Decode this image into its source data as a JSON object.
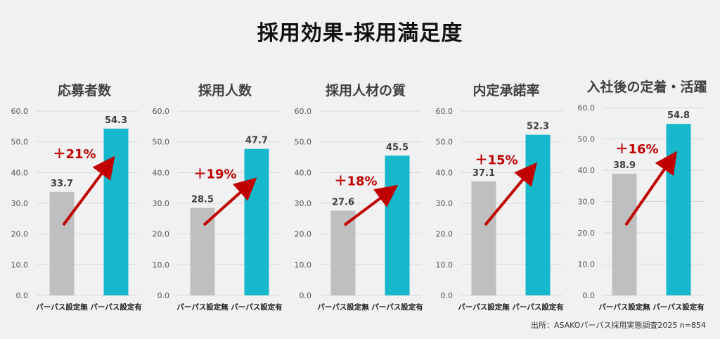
{
  "title": "採用効果-採用満足度",
  "source": "出所：ASAKOパーパス採用実態調査2025 n=854",
  "colors": {
    "without": "#bfbfbf",
    "with": "#17b8cc",
    "arrow": "#c00000",
    "grid": "#d9d9d9"
  },
  "chart_data": [
    {
      "type": "bar",
      "title": "応募者数",
      "categories": [
        "パーパス設定無",
        "パーパス設定有"
      ],
      "values": [
        33.7,
        54.3
      ],
      "increase": "+21%",
      "ylim": [
        0,
        60
      ],
      "yticks": [
        "0.0",
        "10.0",
        "20.0",
        "30.0",
        "40.0",
        "50.0",
        "60.0"
      ]
    },
    {
      "type": "bar",
      "title": "採用人数",
      "categories": [
        "パーパス設定無",
        "パーパス設定有"
      ],
      "values": [
        28.5,
        47.7
      ],
      "increase": "+19%",
      "ylim": [
        0,
        60
      ],
      "yticks": [
        "0.0",
        "10.0",
        "20.0",
        "30.0",
        "40.0",
        "50.0",
        "60.0"
      ]
    },
    {
      "type": "bar",
      "title": "採用人材の質",
      "categories": [
        "パーパス設定無",
        "パーパス設定有"
      ],
      "values": [
        27.6,
        45.5
      ],
      "increase": "+18%",
      "ylim": [
        0,
        60
      ],
      "yticks": [
        "0.0",
        "10.0",
        "20.0",
        "30.0",
        "40.0",
        "50.0",
        "60.0"
      ]
    },
    {
      "type": "bar",
      "title": "内定承諾率",
      "categories": [
        "パーパス設定無",
        "パーパス設定有"
      ],
      "values": [
        37.1,
        52.3
      ],
      "increase": "+15%",
      "ylim": [
        0,
        60
      ],
      "yticks": [
        "0.0",
        "10.0",
        "20.0",
        "30.0",
        "40.0",
        "50.0",
        "60.0"
      ]
    },
    {
      "type": "bar",
      "title": "入社後の定着・活躍",
      "categories": [
        "パーパス設定無",
        "パーパス設定有"
      ],
      "values": [
        38.9,
        54.8
      ],
      "increase": "+16%",
      "ylim": [
        0,
        60
      ],
      "yticks": [
        "0.0",
        "10.0",
        "20.0",
        "30.0",
        "40.0",
        "50.0",
        "60.0"
      ]
    }
  ]
}
